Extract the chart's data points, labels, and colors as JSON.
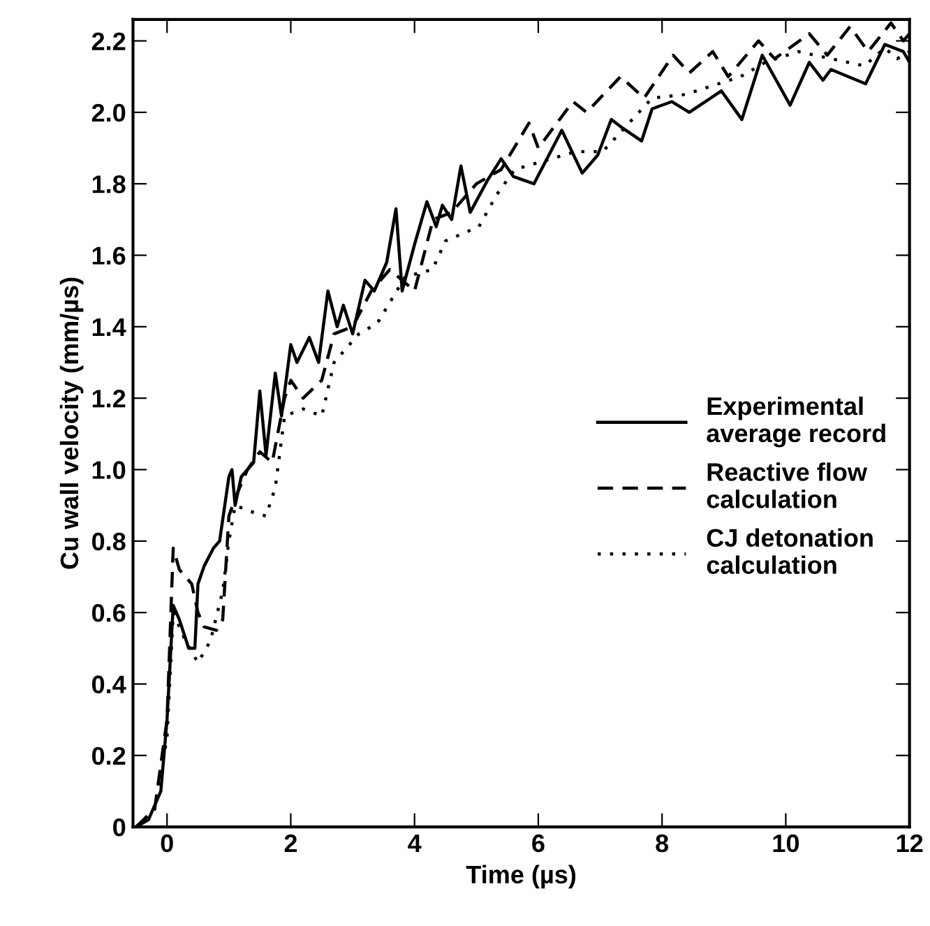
{
  "chart_data": {
    "type": "line",
    "xlabel": "Time (µs)",
    "ylabel": "Cu wall velocity (mm/µs)",
    "xlim": [
      -0.55,
      12
    ],
    "ylim": [
      0,
      2.26
    ],
    "xticks": [
      0,
      2,
      4,
      6,
      8,
      10,
      12
    ],
    "yticks": [
      0,
      0.2,
      0.4,
      0.6,
      0.8,
      {
        "value": 1,
        "label": "1.0"
      },
      1.2,
      1.4,
      1.6,
      1.8,
      {
        "value": 2,
        "label": "2.0"
      },
      2.2
    ],
    "grid": false,
    "legend": "right",
    "marker": "none",
    "series": [
      {
        "name": "Experimental\naverage record",
        "color": "#000000",
        "line_style": "solid",
        "x": [
          -0.5,
          -0.3,
          -0.1,
          0,
          0.1,
          0.2,
          0.35,
          0.45,
          0.5,
          0.6,
          0.75,
          0.85,
          1.0,
          1.05,
          1.1,
          1.2,
          1.4,
          1.5,
          1.6,
          1.75,
          1.85,
          2.0,
          2.1,
          2.3,
          2.45,
          2.6,
          2.75,
          2.85,
          3.0,
          3.2,
          3.35,
          3.55,
          3.7,
          3.8,
          4.0,
          4.2,
          4.35,
          4.45,
          4.6,
          4.75,
          4.9,
          5.18,
          5.4,
          5.6,
          5.93,
          6.38,
          6.71,
          6.96,
          7.18,
          7.33,
          7.67,
          7.84,
          8.16,
          8.44,
          8.96,
          9.29,
          9.62,
          10.07,
          10.38,
          10.6,
          10.73,
          11.29,
          11.6,
          11.9,
          12.0
        ],
        "values": [
          0,
          0.02,
          0.1,
          0.3,
          0.62,
          0.58,
          0.5,
          0.5,
          0.68,
          0.73,
          0.78,
          0.8,
          0.98,
          1.0,
          0.9,
          0.98,
          1.02,
          1.22,
          1.04,
          1.27,
          1.15,
          1.35,
          1.3,
          1.37,
          1.3,
          1.5,
          1.4,
          1.46,
          1.38,
          1.53,
          1.5,
          1.58,
          1.73,
          1.5,
          1.63,
          1.75,
          1.68,
          1.74,
          1.7,
          1.85,
          1.72,
          1.81,
          1.87,
          1.82,
          1.8,
          1.95,
          1.83,
          1.88,
          1.98,
          1.96,
          1.92,
          2.01,
          2.03,
          2.0,
          2.06,
          1.98,
          2.16,
          2.02,
          2.14,
          2.09,
          2.12,
          2.08,
          2.19,
          2.17,
          2.14
        ]
      },
      {
        "name": "Reactive flow\ncalculation",
        "color": "#000000",
        "line_style": "dashed",
        "x": [
          -0.5,
          -0.2,
          0,
          0.1,
          0.2,
          0.4,
          0.5,
          0.6,
          0.8,
          0.9,
          1.0,
          1.1,
          1.3,
          1.5,
          1.7,
          1.9,
          2.0,
          2.2,
          2.5,
          2.7,
          3.0,
          3.3,
          3.6,
          4.0,
          4.3,
          4.6,
          5.0,
          5.4,
          5.85,
          6.0,
          6.56,
          6.78,
          7.33,
          7.71,
          8.18,
          8.44,
          8.82,
          9.07,
          9.56,
          9.82,
          10.38,
          10.67,
          11.04,
          11.33,
          11.7,
          11.9,
          12.0
        ],
        "values": [
          0,
          0.05,
          0.3,
          0.78,
          0.72,
          0.68,
          0.6,
          0.56,
          0.55,
          0.58,
          0.87,
          0.92,
          1.0,
          1.05,
          1.02,
          1.2,
          1.25,
          1.2,
          1.25,
          1.38,
          1.4,
          1.5,
          1.56,
          1.5,
          1.7,
          1.72,
          1.8,
          1.84,
          1.97,
          1.9,
          2.03,
          2.0,
          2.1,
          2.04,
          2.16,
          2.11,
          2.17,
          2.1,
          2.2,
          2.15,
          2.22,
          2.16,
          2.24,
          2.17,
          2.25,
          2.2,
          2.22
        ]
      },
      {
        "name": "CJ detonation\ncalculation",
        "color": "#000000",
        "line_style": "dotted",
        "x": [
          -0.5,
          -0.2,
          0,
          0.1,
          0.3,
          0.5,
          0.7,
          0.9,
          1.0,
          1.1,
          1.4,
          1.6,
          1.75,
          1.9,
          2.2,
          2.5,
          2.7,
          3.1,
          3.4,
          3.85,
          4.29,
          4.5,
          5.04,
          5.33,
          5.62,
          6.6,
          7.04,
          7.84,
          8.38,
          9.27,
          9.67,
          10.2,
          11.27,
          11.6,
          11.8,
          12.0
        ],
        "values": [
          0,
          0.05,
          0.25,
          0.6,
          0.52,
          0.46,
          0.52,
          0.66,
          0.8,
          0.9,
          0.88,
          0.87,
          0.95,
          1.15,
          1.17,
          1.15,
          1.3,
          1.38,
          1.41,
          1.54,
          1.56,
          1.64,
          1.68,
          1.77,
          1.84,
          1.89,
          1.89,
          2.04,
          2.05,
          2.1,
          2.14,
          2.17,
          2.13,
          2.18,
          2.15,
          2.17
        ]
      }
    ]
  }
}
